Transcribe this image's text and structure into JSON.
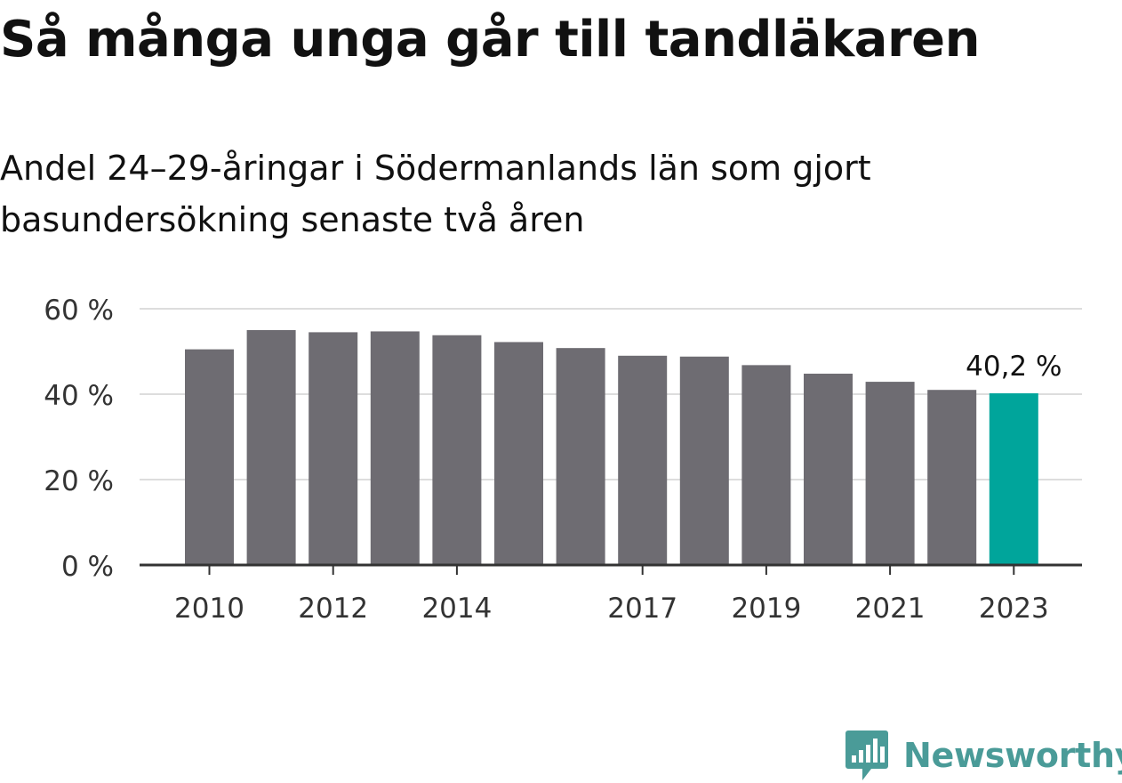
{
  "header": {
    "title": "Så många unga går till tandläkaren",
    "subtitle": "Andel 24–29-åringar i Södermanlands län som gjort basundersökning senaste två åren"
  },
  "chart_data": {
    "type": "bar",
    "categories": [
      "2010",
      "2011",
      "2012",
      "2013",
      "2014",
      "2015",
      "2016",
      "2017",
      "2018",
      "2019",
      "2020",
      "2021",
      "2022",
      "2023"
    ],
    "values": [
      50.5,
      55.0,
      54.5,
      54.7,
      53.8,
      52.2,
      50.8,
      49.0,
      48.8,
      46.8,
      44.8,
      42.9,
      41.0,
      40.2
    ],
    "xtick_labels": [
      "2010",
      "",
      "2012",
      "",
      "2014",
      "",
      "",
      "2017",
      "",
      "2019",
      "",
      "2021",
      "",
      "2023"
    ],
    "yticks": [
      0,
      20,
      40,
      60
    ],
    "ytick_labels": [
      "0 %",
      "20 %",
      "40 %",
      "60 %"
    ],
    "ylim": [
      0,
      60
    ],
    "xlabel": "",
    "ylabel": "",
    "grid": true,
    "highlight_index": 13,
    "annotation": "40,2 %",
    "colors": {
      "bar": "#6e6c72",
      "highlight": "#00a59b",
      "grid": "#dddddd",
      "axis": "#333333",
      "tick_text": "#333333"
    }
  },
  "branding": {
    "logo_text": "Newsworthy",
    "logo_icon": "newsworthy-chart-icon",
    "color": "#4a9b98"
  }
}
